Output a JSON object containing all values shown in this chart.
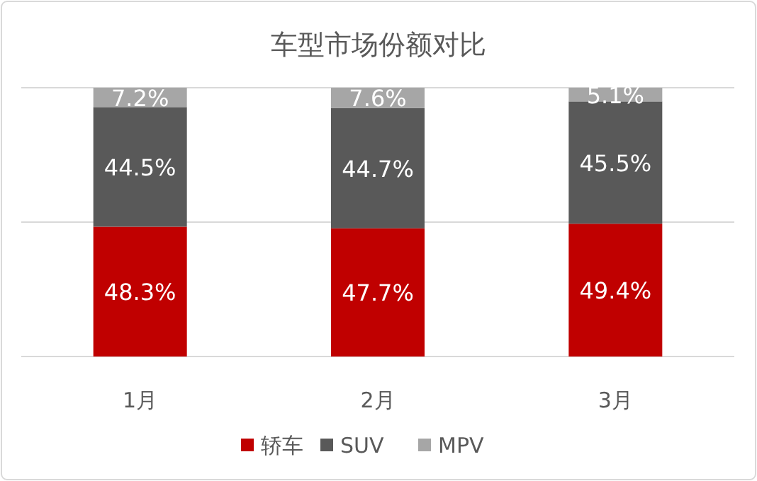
{
  "chart_data": {
    "type": "bar",
    "title": "车型市场份额对比",
    "stacked": true,
    "categories": [
      "1月",
      "2月",
      "3月"
    ],
    "series": [
      {
        "name": "轿车",
        "color": "#c00000",
        "values": [
          48.3,
          47.7,
          49.4
        ],
        "value_labels": [
          "48.3%",
          "47.7%",
          "49.4%"
        ]
      },
      {
        "name": "SUV",
        "color": "#595959",
        "values": [
          44.5,
          44.7,
          45.5
        ],
        "value_labels": [
          "44.5%",
          "44.7%",
          "45.5%"
        ]
      },
      {
        "name": "MPV",
        "color": "#a6a6a6",
        "values": [
          7.2,
          7.6,
          5.1
        ],
        "value_labels": [
          "7.2%",
          "7.6%",
          "5.1%"
        ]
      }
    ],
    "ref_lines": [
      {
        "axis": "y",
        "value": 50,
        "color": "#d9d9d9"
      }
    ],
    "tick_labels": "x",
    "legend": "bottom"
  }
}
